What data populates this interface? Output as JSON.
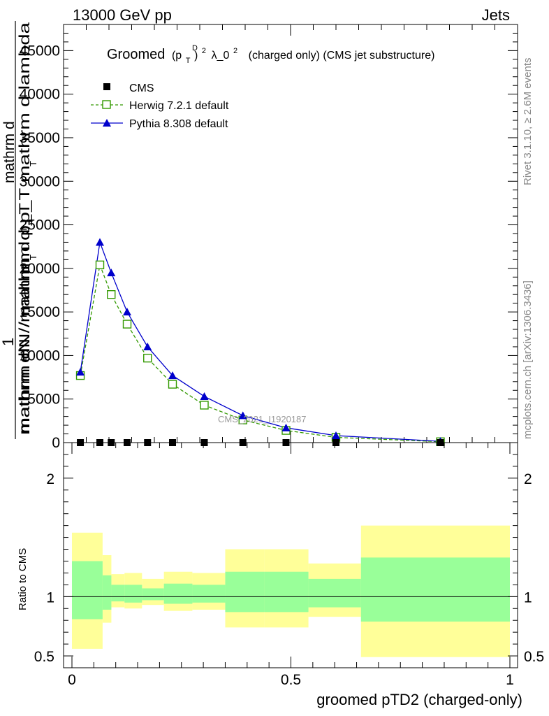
{
  "header": {
    "left": "13000 GeV pp",
    "right": "Jets"
  },
  "side_labels": {
    "rivet": "Rivet 3.1.10, ≥ 2.6M events",
    "mcplots": "mcplots.cern.ch [arXiv:1306.3436]"
  },
  "title": {
    "prefix": "Groomed",
    "p": "(p",
    "sub": "T",
    "sup_d": "D",
    "close": ")",
    "sup2": "2",
    "lambda": "λ_0",
    "sup3": "2",
    "suffix": "(charged only) (CMS jet substructure)"
  },
  "watermark": "CMS_2021_I1920187",
  "ylabel_main": {
    "one": "1",
    "num": "mathrm dN / mathrm d p_T mathrm d lambda",
    "den": "mathrm dN / mathrm d p_T",
    "den2": "mathrm d",
    "sub1": "T",
    "sub2": "T"
  },
  "ylabel_ratio": "Ratio to CMS",
  "xlabel": "groomed pTD2 (charged-only)",
  "colors": {
    "cms": "#000000",
    "herwig": "#339900",
    "pythia": "#0000cc",
    "band_outer": "#ffff99",
    "band_inner": "#99ff99"
  },
  "chart_data": [
    {
      "type": "line",
      "panel": "main",
      "xlim": [
        0,
        1
      ],
      "ylim": [
        0,
        48000
      ],
      "yticks": [
        0,
        5000,
        10000,
        15000,
        20000,
        25000,
        30000,
        35000,
        40000,
        45000
      ],
      "ytick_labels": [
        "0",
        "5000",
        "10000",
        "15000",
        "20000",
        "25000",
        "30000",
        "35000",
        "40000",
        "45000"
      ],
      "legend": [
        "CMS",
        "Herwig 7.2.1 default",
        "Pythia 8.308 default"
      ],
      "legend_position": "top-left",
      "series": [
        {
          "name": "CMS",
          "marker": "filled-square",
          "x": [
            0.037,
            0.08,
            0.105,
            0.14,
            0.185,
            0.24,
            0.31,
            0.395,
            0.49,
            0.6,
            0.83
          ],
          "y": [
            0,
            0,
            0,
            0,
            0,
            0,
            0,
            0,
            0,
            0,
            0
          ]
        },
        {
          "name": "Herwig 7.2.1 default",
          "marker": "open-square",
          "line": "dashed",
          "x": [
            0.037,
            0.08,
            0.105,
            0.14,
            0.185,
            0.24,
            0.31,
            0.395,
            0.49,
            0.6,
            0.83
          ],
          "y": [
            7700,
            20400,
            17000,
            13600,
            9700,
            6700,
            4300,
            2600,
            1400,
            600,
            100
          ]
        },
        {
          "name": "Pythia 8.308 default",
          "marker": "filled-triangle",
          "line": "solid",
          "x": [
            0.037,
            0.08,
            0.105,
            0.14,
            0.185,
            0.24,
            0.31,
            0.395,
            0.49,
            0.6,
            0.83
          ],
          "y": [
            8100,
            23000,
            19500,
            15000,
            11000,
            7700,
            5300,
            3100,
            1700,
            800,
            150
          ]
        }
      ]
    },
    {
      "type": "area",
      "panel": "ratio",
      "xlim": [
        0,
        1
      ],
      "ylim": [
        0.4,
        2.3
      ],
      "yticks": [
        0.5,
        1,
        2
      ],
      "ytick_labels": [
        "0.5",
        "1",
        "2"
      ],
      "xticks": [
        0,
        0.5,
        1
      ],
      "xtick_labels": [
        "0",
        "0.5",
        "1"
      ],
      "reference_line": 1,
      "bands": {
        "edges": [
          0.0,
          0.07,
          0.09,
          0.12,
          0.16,
          0.21,
          0.275,
          0.35,
          0.44,
          0.54,
          0.66,
          1.0
        ],
        "outer_low": [
          0.56,
          0.78,
          0.91,
          0.9,
          0.93,
          0.88,
          0.89,
          0.74,
          0.74,
          0.83,
          0.49
        ],
        "outer_high": [
          1.54,
          1.35,
          1.19,
          1.2,
          1.15,
          1.21,
          1.2,
          1.4,
          1.4,
          1.28,
          1.6
        ],
        "inner_low": [
          0.81,
          0.89,
          0.96,
          0.95,
          0.97,
          0.94,
          0.95,
          0.87,
          0.87,
          0.91,
          0.79
        ],
        "inner_high": [
          1.3,
          1.18,
          1.1,
          1.1,
          1.07,
          1.11,
          1.1,
          1.21,
          1.21,
          1.15,
          1.33
        ]
      }
    }
  ]
}
